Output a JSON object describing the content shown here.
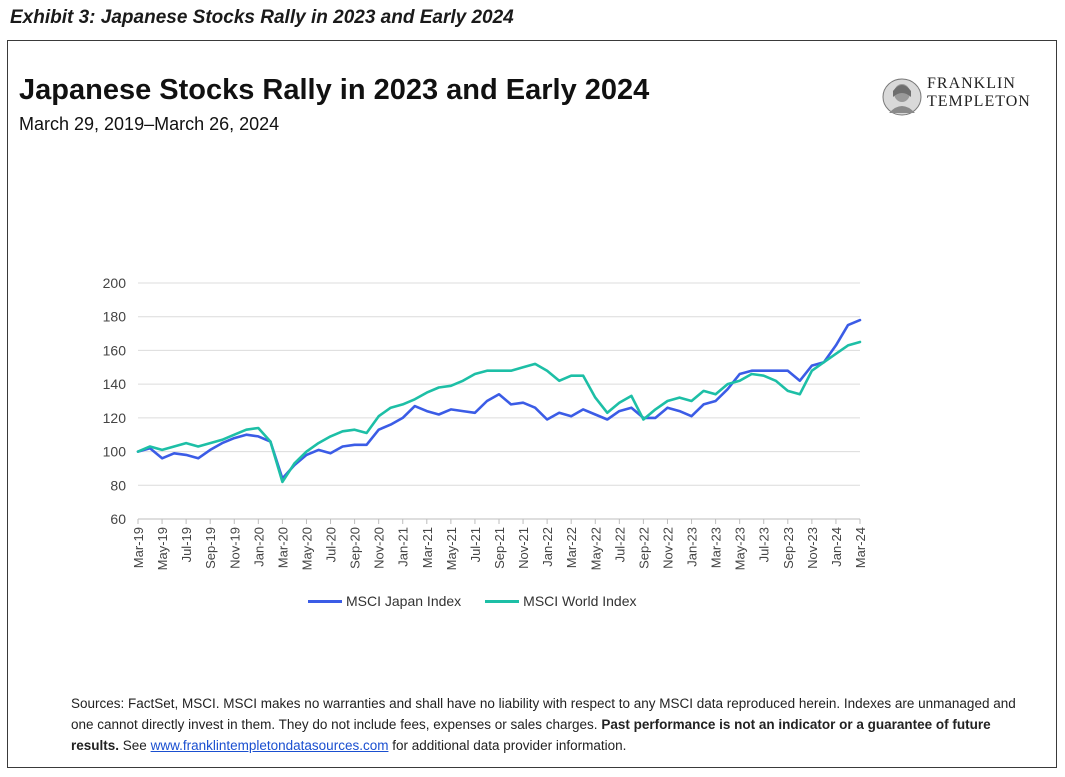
{
  "exhibit_label": "Exhibit 3: Japanese Stocks Rally in 2023 and Early 2024",
  "logo": {
    "line1": "FRANKLIN",
    "line2": "TEMPLETON",
    "icon": "franklin-portrait-icon"
  },
  "sources": {
    "part1": "Sources: FactSet, MSCI. MSCI makes no warranties and shall have no liability with respect to any MSCI data reproduced herein. Indexes are unmanaged and one cannot directly invest in them. They do not include fees, expenses or sales charges.",
    "bold": "Past performance is not an indicator or a guarantee of future results.",
    "part2": "See",
    "link": "www.franklintempletondatasources.com",
    "part3": "for additional data provider information."
  },
  "chart_data": {
    "type": "line",
    "title": "Japanese Stocks Rally in 2023 and Early 2024",
    "subtitle": "March 29, 2019–March 26, 2024",
    "ylim": [
      60,
      200
    ],
    "yticks": [
      60,
      80,
      100,
      120,
      140,
      160,
      180,
      200
    ],
    "xlim": [
      "2019-03",
      "2024-03"
    ],
    "xticks": [
      "Mar-19",
      "May-19",
      "Jul-19",
      "Sep-19",
      "Nov-19",
      "Jan-20",
      "Mar-20",
      "May-20",
      "Jul-20",
      "Sep-20",
      "Nov-20",
      "Jan-21",
      "Mar-21",
      "May-21",
      "Jul-21",
      "Sep-21",
      "Nov-21",
      "Jan-22",
      "Mar-22",
      "May-22",
      "Jul-22",
      "Sep-22",
      "Nov-22",
      "Jan-23",
      "Mar-23",
      "May-23",
      "Jul-23",
      "Sep-23",
      "Nov-23",
      "Jan-24",
      "Mar-24"
    ],
    "grid": true,
    "legend_position": "bottom",
    "x": [
      "2019-03",
      "2019-04",
      "2019-05",
      "2019-06",
      "2019-07",
      "2019-08",
      "2019-09",
      "2019-10",
      "2019-11",
      "2019-12",
      "2020-01",
      "2020-02",
      "2020-03",
      "2020-04",
      "2020-05",
      "2020-06",
      "2020-07",
      "2020-08",
      "2020-09",
      "2020-10",
      "2020-11",
      "2020-12",
      "2021-01",
      "2021-02",
      "2021-03",
      "2021-04",
      "2021-05",
      "2021-06",
      "2021-07",
      "2021-08",
      "2021-09",
      "2021-10",
      "2021-11",
      "2021-12",
      "2022-01",
      "2022-02",
      "2022-03",
      "2022-04",
      "2022-05",
      "2022-06",
      "2022-07",
      "2022-08",
      "2022-09",
      "2022-10",
      "2022-11",
      "2022-12",
      "2023-01",
      "2023-02",
      "2023-03",
      "2023-04",
      "2023-05",
      "2023-06",
      "2023-07",
      "2023-08",
      "2023-09",
      "2023-10",
      "2023-11",
      "2023-12",
      "2024-01",
      "2024-02",
      "2024-03"
    ],
    "series": [
      {
        "name": "MSCI Japan Index",
        "color": "#3b5ce6",
        "values": [
          100,
          102,
          96,
          99,
          98,
          96,
          101,
          105,
          108,
          110,
          109,
          106,
          84,
          92,
          98,
          101,
          99,
          103,
          104,
          104,
          113,
          116,
          120,
          127,
          124,
          122,
          125,
          124,
          123,
          130,
          134,
          128,
          129,
          126,
          119,
          123,
          121,
          125,
          122,
          119,
          124,
          126,
          120,
          120,
          126,
          124,
          121,
          128,
          130,
          137,
          146,
          148,
          148,
          148,
          148,
          142,
          151,
          153,
          163,
          175,
          178
        ]
      },
      {
        "name": "MSCI World Index",
        "color": "#1dbfa6",
        "values": [
          100,
          103,
          101,
          103,
          105,
          103,
          105,
          107,
          110,
          113,
          114,
          106,
          82,
          93,
          100,
          105,
          109,
          112,
          113,
          111,
          121,
          126,
          128,
          131,
          135,
          138,
          139,
          142,
          146,
          148,
          148,
          148,
          150,
          152,
          148,
          142,
          145,
          145,
          132,
          123,
          129,
          133,
          119,
          125,
          130,
          132,
          130,
          136,
          134,
          140,
          142,
          146,
          145,
          142,
          136,
          134,
          148,
          153,
          158,
          163,
          165
        ]
      }
    ]
  }
}
